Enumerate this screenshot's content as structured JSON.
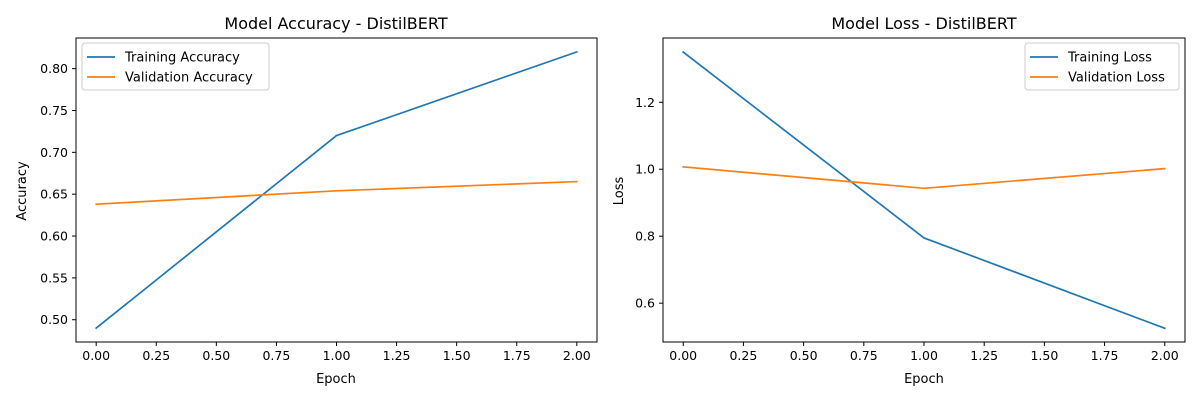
{
  "chart_data": [
    {
      "type": "line",
      "title": "Model Accuracy - DistilBERT",
      "xlabel": "Epoch",
      "ylabel": "Accuracy",
      "x": [
        0,
        1,
        2
      ],
      "xlim": [
        -0.084,
        2.084
      ],
      "ylim": [
        0.4734,
        0.8366
      ],
      "xticks": [
        0.0,
        0.25,
        0.5,
        0.75,
        1.0,
        1.25,
        1.5,
        1.75,
        2.0
      ],
      "xtick_labels": [
        "0.00",
        "0.25",
        "0.50",
        "0.75",
        "1.00",
        "1.25",
        "1.50",
        "1.75",
        "2.00"
      ],
      "yticks": [
        0.5,
        0.55,
        0.6,
        0.65,
        0.7,
        0.75,
        0.8
      ],
      "ytick_labels": [
        "0.50",
        "0.55",
        "0.60",
        "0.65",
        "0.70",
        "0.75",
        "0.80"
      ],
      "legend": "upper left",
      "grid": false,
      "series": [
        {
          "name": "Training Accuracy",
          "values": [
            0.49,
            0.72,
            0.82
          ],
          "color": "#1f77b4"
        },
        {
          "name": "Validation Accuracy",
          "values": [
            0.638,
            0.654,
            0.665
          ],
          "color": "#ff7f0e"
        }
      ]
    },
    {
      "type": "line",
      "title": "Model Loss - DistilBERT",
      "xlabel": "Epoch",
      "ylabel": "Loss",
      "x": [
        0,
        1,
        2
      ],
      "xlim": [
        -0.084,
        2.084
      ],
      "ylim": [
        0.484,
        1.392
      ],
      "xticks": [
        0.0,
        0.25,
        0.5,
        0.75,
        1.0,
        1.25,
        1.5,
        1.75,
        2.0
      ],
      "xtick_labels": [
        "0.00",
        "0.25",
        "0.50",
        "0.75",
        "1.00",
        "1.25",
        "1.50",
        "1.75",
        "2.00"
      ],
      "yticks": [
        0.6,
        0.8,
        1.0,
        1.2
      ],
      "ytick_labels": [
        "0.6",
        "0.8",
        "1.0",
        "1.2"
      ],
      "legend": "upper right",
      "grid": false,
      "series": [
        {
          "name": "Training Loss",
          "values": [
            1.35,
            0.795,
            0.525
          ],
          "color": "#1f77b4"
        },
        {
          "name": "Validation Loss",
          "values": [
            1.007,
            0.943,
            1.002
          ],
          "color": "#ff7f0e"
        }
      ]
    }
  ]
}
